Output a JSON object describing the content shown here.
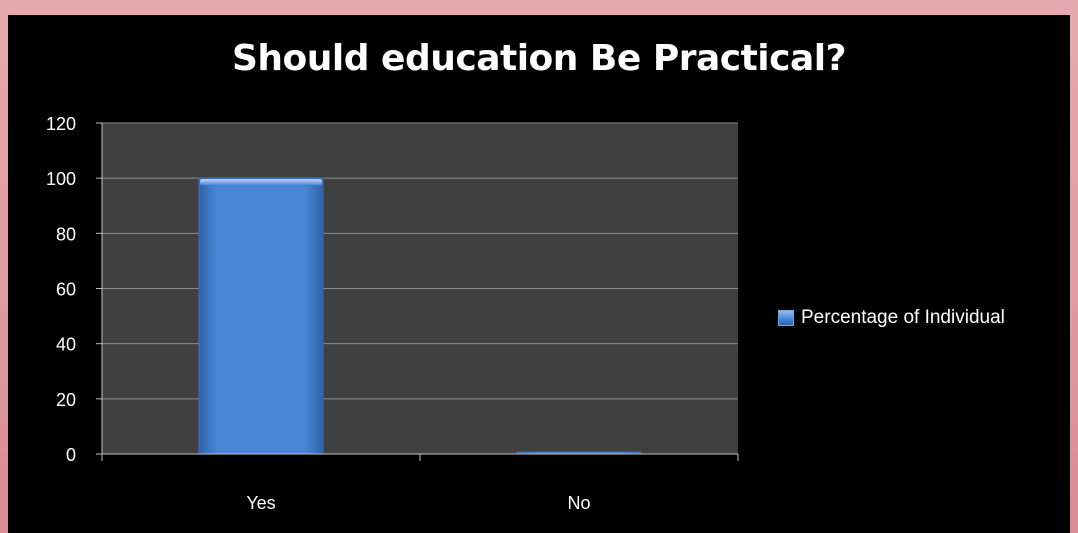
{
  "chart_data": {
    "type": "bar",
    "title": "Should education Be Practical?",
    "categories": [
      "Yes",
      "No"
    ],
    "series": [
      {
        "name": "Percentage of Individual",
        "values": [
          100,
          0
        ]
      }
    ],
    "ylim": [
      0,
      120
    ],
    "yticks": [
      0,
      20,
      40,
      60,
      80,
      100,
      120
    ],
    "xlabel": "",
    "ylabel": "",
    "grid": true,
    "legend_position": "right",
    "colors": {
      "bar": "#4a86d6",
      "plot_background": "#404040",
      "page_background": "#000000",
      "frame": "#e0a0a8",
      "text": "#ffffff"
    }
  }
}
